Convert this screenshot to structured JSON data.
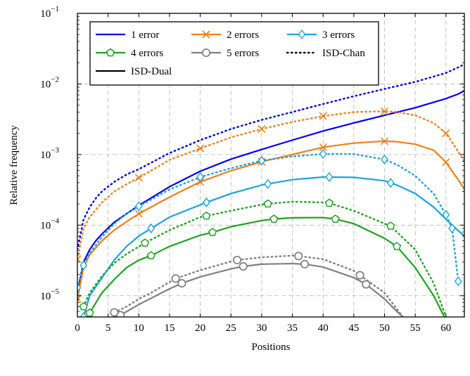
{
  "chart_data": {
    "type": "line",
    "xlabel": "Positions",
    "ylabel": "Relative frequency",
    "xlim": [
      0,
      63
    ],
    "ylim": [
      5e-06,
      0.1
    ],
    "yscale": "log",
    "grid": true,
    "legend_position": "top-left",
    "x_ticks": [
      "0",
      "5",
      "10",
      "15",
      "20",
      "25",
      "30",
      "35",
      "40",
      "45",
      "50",
      "55",
      "60"
    ],
    "y_ticks": [
      {
        "base": "10",
        "exp": "−1"
      },
      {
        "base": "10",
        "exp": "−2"
      },
      {
        "base": "10",
        "exp": "−3"
      },
      {
        "base": "10",
        "exp": "−4"
      },
      {
        "base": "10",
        "exp": "−5"
      }
    ],
    "legend": [
      {
        "label": "1 error",
        "color": "#0000ee",
        "marker": "none",
        "dash": "solid"
      },
      {
        "label": "2 errors",
        "color": "#f57f17",
        "marker": "cross",
        "dash": "solid"
      },
      {
        "label": "3 errors",
        "color": "#1aa3e0",
        "marker": "diamond",
        "dash": "solid"
      },
      {
        "label": "4 errors",
        "color": "#1fa31f",
        "marker": "pentagon",
        "dash": "solid"
      },
      {
        "label": "5 errors",
        "color": "#7f7f7f",
        "marker": "circle",
        "dash": "solid"
      },
      {
        "label": "ISD-Chan",
        "color": "#000000",
        "marker": "none",
        "dash": "dotted"
      },
      {
        "label": "ISD-Dual",
        "color": "#000000",
        "marker": "none",
        "dash": "solid"
      }
    ],
    "series": [
      {
        "errors": 1,
        "method": "ISD-Dual",
        "color": "#0000ee",
        "dash": "solid",
        "marker": "none",
        "x": [
          0,
          1,
          2,
          3,
          4,
          6,
          8,
          10,
          15,
          20,
          25,
          30,
          35,
          40,
          45,
          50,
          55,
          60,
          62,
          63
        ],
        "y": [
          1.1e-05,
          3e-05,
          4.5e-05,
          6e-05,
          7.5e-05,
          0.00011,
          0.000145,
          0.00019,
          0.00035,
          0.00058,
          0.00086,
          0.00118,
          0.0016,
          0.00215,
          0.0028,
          0.0036,
          0.0046,
          0.0062,
          0.0072,
          0.008
        ]
      },
      {
        "errors": 1,
        "method": "ISD-Chan",
        "color": "#0000ee",
        "dash": "dotted",
        "marker": "none",
        "x": [
          0,
          1,
          2,
          3,
          4,
          6,
          8,
          10,
          15,
          20,
          25,
          30,
          35,
          40,
          45,
          50,
          55,
          60,
          62,
          63
        ],
        "y": [
          4.5e-05,
          0.00012,
          0.00018,
          0.00024,
          0.0003,
          0.00041,
          0.00052,
          0.00062,
          0.00105,
          0.0016,
          0.0023,
          0.0031,
          0.004,
          0.0052,
          0.0067,
          0.0085,
          0.0107,
          0.0143,
          0.0172,
          0.019
        ]
      },
      {
        "errors": 2,
        "method": "ISD-Dual",
        "color": "#f57f17",
        "dash": "solid",
        "marker": "cross",
        "x": [
          0,
          1,
          2,
          4,
          6,
          8,
          10,
          15,
          20,
          25,
          30,
          35,
          40,
          45,
          50,
          52,
          55,
          58,
          60,
          61,
          62,
          63
        ],
        "y": [
          9e-06,
          2.5e-05,
          3.8e-05,
          6e-05,
          8.5e-05,
          0.000112,
          0.000145,
          0.00025,
          0.00041,
          0.00059,
          0.00079,
          0.001,
          0.00127,
          0.00145,
          0.00155,
          0.00152,
          0.0014,
          0.00115,
          0.00078,
          0.00058,
          0.00044,
          0.00032
        ],
        "marker_x": [
          0,
          10,
          20,
          30,
          40,
          50,
          60
        ]
      },
      {
        "errors": 2,
        "method": "ISD-Chan",
        "color": "#f57f17",
        "dash": "dotted",
        "marker": "cross",
        "x": [
          0,
          1,
          2,
          4,
          6,
          8,
          10,
          15,
          20,
          25,
          30,
          35,
          40,
          45,
          50,
          52,
          55,
          58,
          60,
          61,
          62,
          63
        ],
        "y": [
          3.3e-05,
          9e-05,
          0.00013,
          0.00021,
          0.0003,
          0.00038,
          0.00047,
          0.00084,
          0.00122,
          0.00175,
          0.0023,
          0.0029,
          0.0035,
          0.004,
          0.0041,
          0.004,
          0.0036,
          0.0028,
          0.002,
          0.0015,
          0.0011,
          0.0008
        ],
        "marker_x": [
          0,
          10,
          20,
          30,
          40,
          50,
          60
        ]
      },
      {
        "errors": 3,
        "method": "ISD-Dual",
        "color": "#1aa3e0",
        "dash": "solid",
        "marker": "diamond",
        "x": [
          1,
          2,
          4,
          6,
          8,
          10,
          12,
          15,
          21,
          25,
          30,
          35,
          40,
          45,
          50,
          52,
          55,
          58,
          61,
          63
        ],
        "y": [
          5e-06,
          1e-05,
          1.8e-05,
          3.2e-05,
          5e-05,
          7e-05,
          9e-05,
          0.00013,
          0.00021,
          0.00028,
          0.00037,
          0.00044,
          0.00048,
          0.000475,
          0.000425,
          0.00037,
          0.00028,
          0.00018,
          0.0001,
          7e-05
        ],
        "marker_x": [
          1,
          12,
          21,
          31,
          41,
          51
        ]
      },
      {
        "errors": 3,
        "method": "ISD-Chan",
        "color": "#1aa3e0",
        "dash": "dotted",
        "marker": "diamond",
        "x": [
          0,
          1,
          2,
          4,
          6,
          8,
          10,
          12,
          15,
          20,
          25,
          30,
          35,
          40,
          45,
          50,
          52,
          55,
          58,
          60,
          61,
          62
        ],
        "y": [
          1.3e-05,
          2.7e-05,
          4e-05,
          6.8e-05,
          0.000105,
          0.000145,
          0.000185,
          0.00023,
          0.00032,
          0.00048,
          0.00064,
          0.00082,
          0.00094,
          0.00102,
          0.00102,
          0.00085,
          0.00072,
          0.0005,
          0.00028,
          0.00014,
          9e-05,
          1.6e-05
        ],
        "marker_x": [
          0,
          1,
          10,
          20,
          30,
          40,
          50,
          60,
          61,
          62
        ]
      },
      {
        "errors": 4,
        "method": "ISD-Dual",
        "color": "#1fa31f",
        "dash": "solid",
        "marker": "pentagon",
        "x": [
          1,
          2,
          4,
          6,
          8,
          10,
          12,
          15,
          20,
          22,
          25,
          30,
          32,
          35,
          40,
          42,
          45,
          50,
          52,
          55,
          58,
          60
        ],
        "y": [
          3e-06,
          5.7e-06,
          1.1e-05,
          1.7e-05,
          2.5e-05,
          3.2e-05,
          3.7e-05,
          5e-05,
          7.2e-05,
          7.9e-05,
          9.5e-05,
          0.000116,
          0.000122,
          0.000127,
          0.000128,
          0.000122,
          0.000105,
          6.5e-05,
          5e-05,
          2.5e-05,
          1e-05,
          4.5e-06
        ],
        "marker_x": [
          2,
          12,
          22,
          32,
          42,
          52
        ]
      },
      {
        "errors": 4,
        "method": "ISD-Chan",
        "color": "#1fa31f",
        "dash": "dotted",
        "marker": "pentagon",
        "x": [
          1,
          2,
          4,
          6,
          8,
          11,
          15,
          20,
          21,
          25,
          30,
          31,
          35,
          40,
          41,
          45,
          50,
          51,
          55,
          58,
          60
        ],
        "y": [
          7e-06,
          1.1e-05,
          1.9e-05,
          2.9e-05,
          3.9e-05,
          5.6e-05,
          8.5e-05,
          0.00013,
          0.000135,
          0.00016,
          0.000195,
          0.0002,
          0.000215,
          0.00021,
          0.000205,
          0.00016,
          0.000105,
          9.7e-05,
          4.5e-05,
          1.5e-05,
          5e-06
        ],
        "marker_x": [
          1,
          11,
          21,
          31,
          41,
          51
        ]
      },
      {
        "errors": 5,
        "method": "ISD-Dual",
        "color": "#7f7f7f",
        "dash": "solid",
        "marker": "circle",
        "x": [
          5,
          7,
          10,
          15,
          17,
          20,
          25,
          27,
          30,
          35,
          37,
          40,
          45,
          47,
          50,
          52,
          53
        ],
        "y": [
          4.5e-06,
          5.3e-06,
          7.5e-06,
          1.25e-05,
          1.5e-05,
          1.85e-05,
          2.4e-05,
          2.6e-05,
          2.8e-05,
          2.85e-05,
          2.8e-05,
          2.55e-05,
          1.8e-05,
          1.45e-05,
          9e-06,
          6e-06,
          5e-06
        ],
        "marker_x": [
          7,
          17,
          27,
          37,
          47
        ]
      },
      {
        "errors": 5,
        "method": "ISD-Chan",
        "color": "#7f7f7f",
        "dash": "dotted",
        "marker": "circle",
        "x": [
          6,
          8,
          10,
          12,
          16,
          20,
          25,
          26,
          30,
          35,
          36,
          40,
          45,
          46,
          50,
          52,
          53
        ],
        "y": [
          5.8e-06,
          7e-06,
          9e-06,
          1.1e-05,
          1.75e-05,
          2.3e-05,
          3.05e-05,
          3.2e-05,
          3.5e-05,
          3.7e-05,
          3.65e-05,
          3.3e-05,
          2.25e-05,
          1.95e-05,
          1.1e-05,
          6.5e-06,
          5e-06
        ],
        "marker_x": [
          6,
          16,
          26,
          36,
          46
        ]
      }
    ]
  }
}
